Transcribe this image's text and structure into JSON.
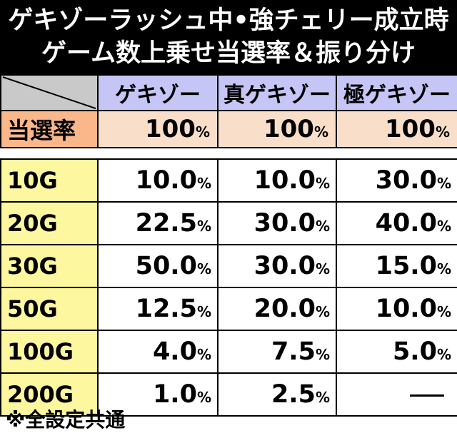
{
  "title": {
    "line1": "ゲキゾーラッシュ中•強チェリー成立時",
    "line2": "ゲーム数上乗せ当選率＆振り分け"
  },
  "table": {
    "columns": [
      "ゲキゾー",
      "真ゲキゾー",
      "極ゲキゾー"
    ],
    "rate_row": {
      "label": "当選率",
      "values": [
        "100",
        "100",
        "100"
      ]
    },
    "pct_unit": "%",
    "rows": [
      {
        "label": "10G",
        "values": [
          "10.0",
          "10.0",
          "30.0"
        ]
      },
      {
        "label": "20G",
        "values": [
          "22.5",
          "30.0",
          "40.0"
        ]
      },
      {
        "label": "30G",
        "values": [
          "50.0",
          "30.0",
          "15.0"
        ]
      },
      {
        "label": "50G",
        "values": [
          "12.5",
          "20.0",
          "10.0"
        ]
      },
      {
        "label": "100G",
        "values": [
          "4.0",
          "7.5",
          "5.0"
        ]
      },
      {
        "label": "200G",
        "values": [
          "1.0",
          "2.5",
          null
        ]
      }
    ]
  },
  "footnote": "※全設定共通",
  "colors": {
    "title_bg": "#000000",
    "column_header_bg": "#c6c6f6",
    "rate_label_bg": "#f9b78a",
    "rate_value_bg": "#f9dfc9",
    "row_label_bg": "#fdf7a0",
    "corner_bg": "#c9c9c9"
  }
}
